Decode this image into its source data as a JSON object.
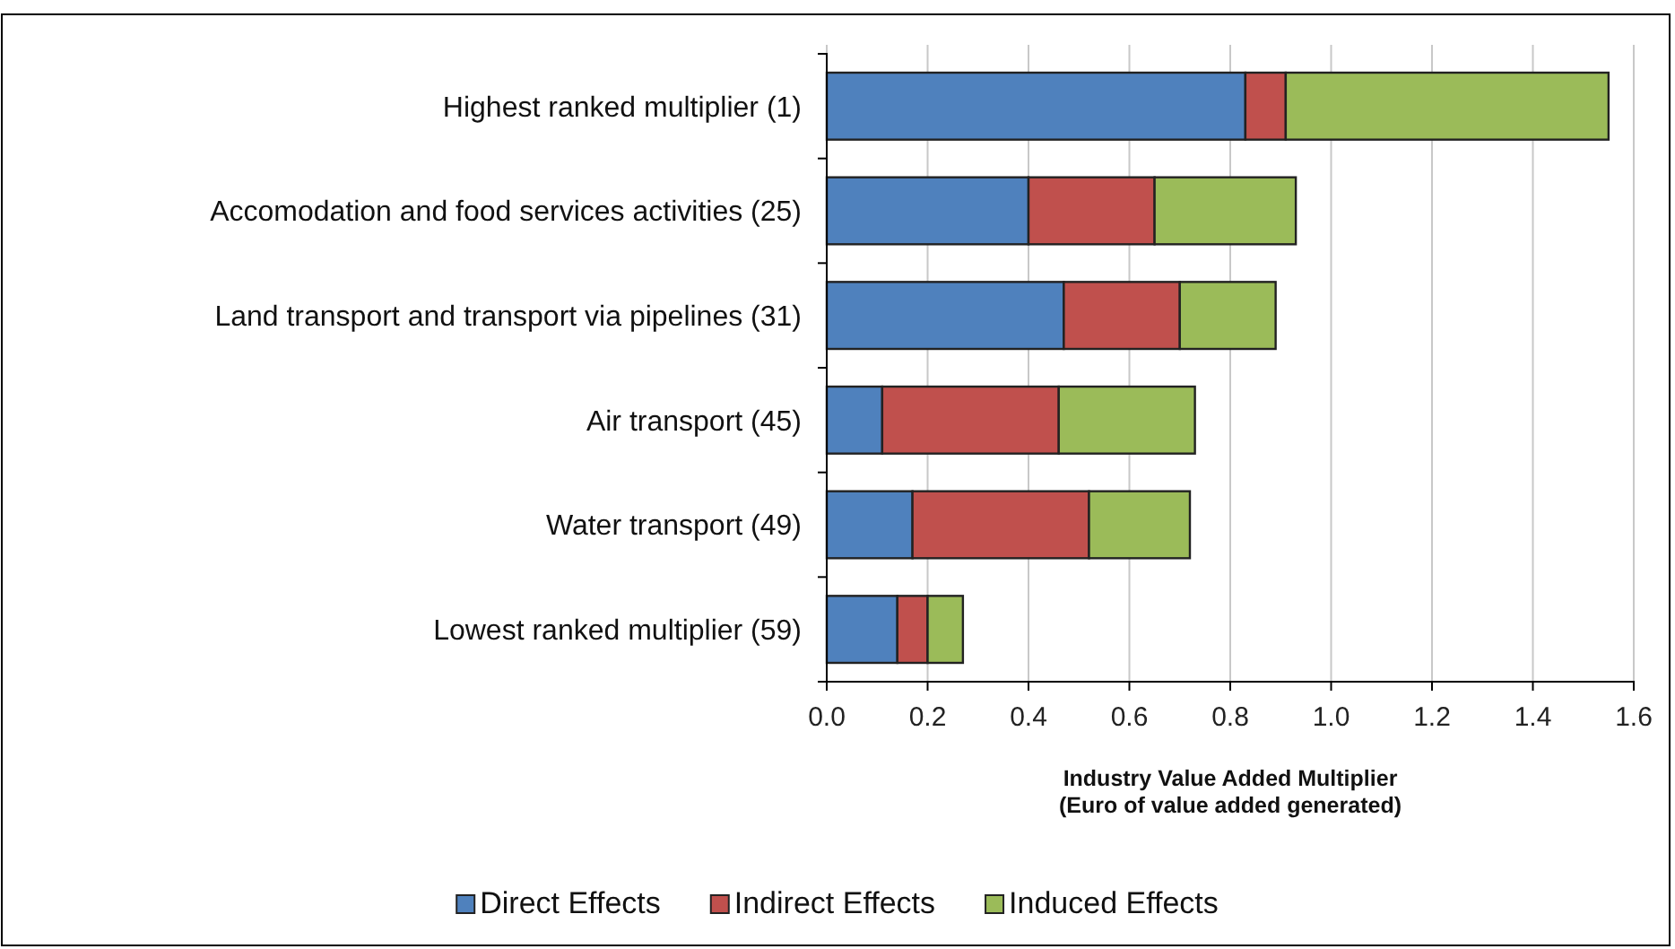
{
  "chart_data": {
    "type": "bar",
    "orientation": "horizontal",
    "stacked": true,
    "categories": [
      "Highest ranked multiplier (1)",
      "Accomodation and food services activities (25)",
      "Land transport and transport via pipelines (31)",
      "Air transport (45)",
      "Water transport (49)",
      "Lowest ranked multiplier (59)"
    ],
    "series": [
      {
        "name": "Direct Effects",
        "color": "#4f81bd",
        "values": [
          0.83,
          0.4,
          0.47,
          0.11,
          0.17,
          0.14
        ]
      },
      {
        "name": "Indirect Effects",
        "color": "#c0504d",
        "values": [
          0.08,
          0.25,
          0.23,
          0.35,
          0.35,
          0.06
        ]
      },
      {
        "name": "Induced Effects",
        "color": "#9bbb59",
        "values": [
          0.64,
          0.28,
          0.19,
          0.27,
          0.2,
          0.07
        ]
      }
    ],
    "xlim": [
      0,
      1.6
    ],
    "xticks": [
      {
        "value": 0,
        "label": "0.0"
      },
      0.2,
      0.4,
      0.6,
      0.8,
      {
        "value": 1,
        "label": "1.0"
      },
      1.2,
      1.4,
      1.6
    ],
    "xlabel": "Industry Value Added Multiplier\n(Euro of value added generated)",
    "grid": "x",
    "legend": "bottom"
  }
}
